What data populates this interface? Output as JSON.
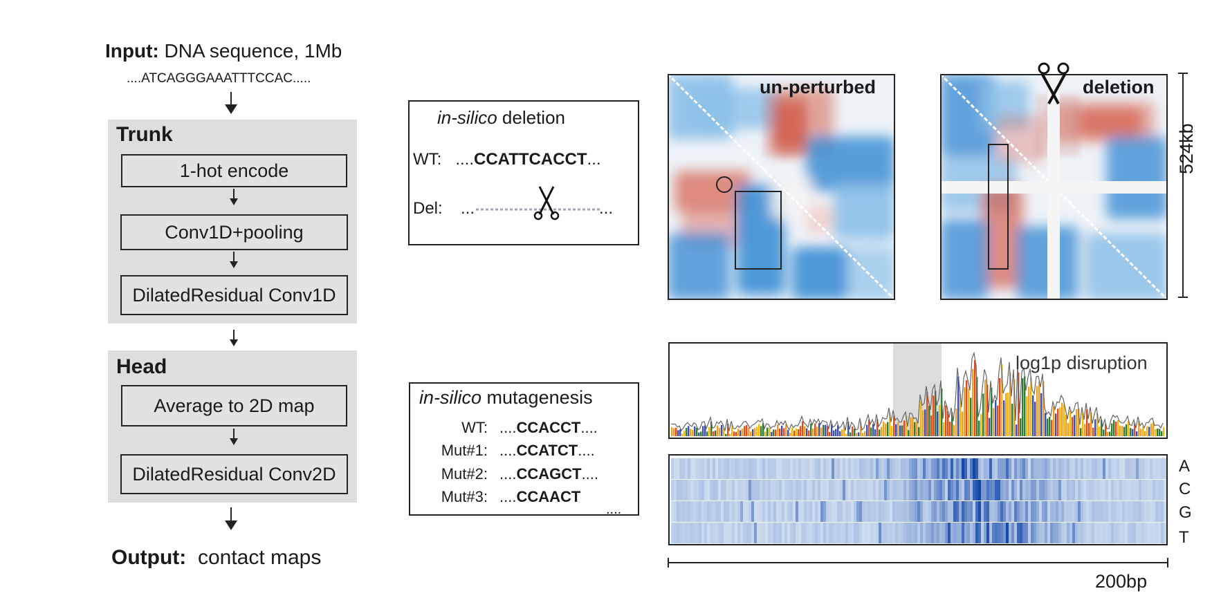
{
  "input": {
    "label": "Input:",
    "text": "DNA sequence, 1Mb",
    "sequence": "....ATCAGGGAAATTTCCAC....."
  },
  "trunk": {
    "title": "Trunk",
    "steps": [
      "1-hot encode",
      "Conv1D+pooling",
      "DilatedResidual Conv1D"
    ]
  },
  "head": {
    "title": "Head",
    "steps": [
      "Average to 2D map",
      "DilatedResidual Conv2D"
    ]
  },
  "output": {
    "label": "Output:",
    "text": "contact maps"
  },
  "deletion_box": {
    "title_italic": "in-silico",
    "title_rest": " deletion",
    "wt_label": "WT:",
    "wt_prefix": "....",
    "wt_bold": "CCATTCACCT",
    "wt_suffix": "...",
    "del_label": "Del:",
    "del_prefix": "...",
    "del_suffix": "..."
  },
  "mutagenesis_box": {
    "title_italic": "in-silico",
    "title_rest": " mutagenesis",
    "rows": [
      {
        "label": "WT:",
        "prefix": "....",
        "bold": "CCACCT",
        "suffix": "...."
      },
      {
        "label": "Mut#1:",
        "prefix": "....",
        "bold": "CCATCT",
        "suffix": "...."
      },
      {
        "label": "Mut#2:",
        "prefix": "....",
        "bold": "CCAGCT",
        "suffix": "...."
      },
      {
        "label": "Mut#3:",
        "prefix": "....",
        "bold": "CCAACT",
        "suffix": ""
      }
    ],
    "more": "...."
  },
  "maps": {
    "unperturbed_label": "un-perturbed",
    "deletion_label": "deletion",
    "scale_label": "524kb"
  },
  "disruption": {
    "label": "log1p disruption",
    "bases": [
      "A",
      "C",
      "G",
      "T"
    ],
    "scale_label": "200bp"
  },
  "colors": {
    "panel_gray": "#dedede",
    "red": "#c0392b",
    "blue": "#2f7fc8",
    "white": "#ffffff"
  }
}
